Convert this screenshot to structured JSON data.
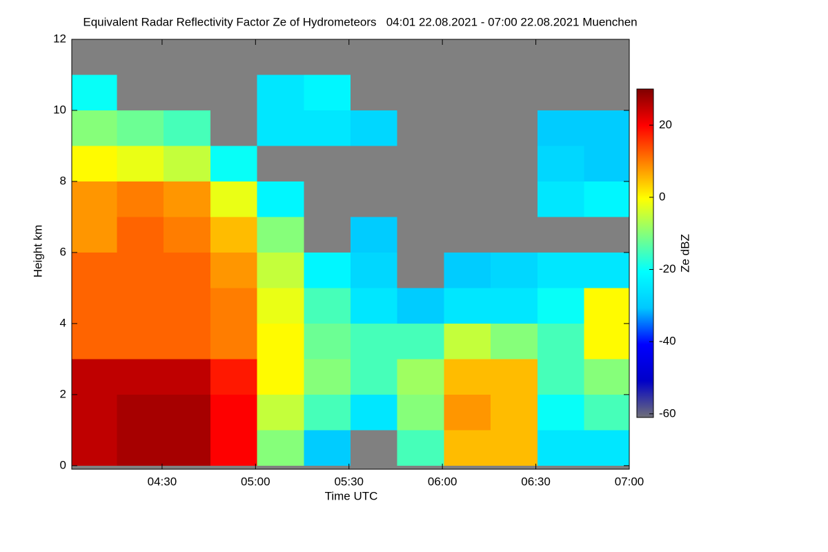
{
  "chart_data": {
    "type": "heatmap",
    "title": "Equivalent Radar Reflectivity Factor Ze of Hydrometeors   04:01 22.08.2021 - 07:00 22.08.2021 Muenchen",
    "xlabel": "Time UTC",
    "ylabel": "Height km",
    "colorbar_label": "Ze dBZ",
    "x": [
      248,
      263,
      278,
      293,
      308,
      323,
      338,
      353,
      368,
      383,
      398,
      413
    ],
    "y": [
      0.5,
      1.5,
      2.5,
      3.5,
      4.5,
      5.5,
      6.5,
      7.5,
      8.5,
      9.5,
      10.5,
      11.5
    ],
    "z": [
      [
        25,
        27,
        27,
        20,
        -10,
        -30,
        null,
        -15,
        5,
        5,
        -25,
        -25
      ],
      [
        25,
        27,
        27,
        20,
        -5,
        -15,
        -25,
        -10,
        8,
        5,
        -20,
        -15
      ],
      [
        25,
        25,
        25,
        18,
        0,
        -10,
        -15,
        -8,
        5,
        5,
        -15,
        -10
      ],
      [
        12,
        12,
        12,
        10,
        0,
        -12,
        -15,
        -15,
        -5,
        -10,
        -15,
        0
      ],
      [
        12,
        12,
        12,
        10,
        -2,
        -15,
        -25,
        -30,
        -25,
        -25,
        -20,
        0
      ],
      [
        12,
        12,
        12,
        8,
        -5,
        -22,
        -28,
        null,
        -30,
        -28,
        -25,
        -25
      ],
      [
        8,
        12,
        10,
        5,
        -10,
        null,
        -30,
        null,
        null,
        null,
        null,
        null
      ],
      [
        8,
        10,
        8,
        -2,
        -22,
        null,
        null,
        null,
        null,
        null,
        -25,
        -22
      ],
      [
        0,
        -2,
        -5,
        -20,
        null,
        null,
        null,
        null,
        null,
        null,
        -28,
        -30
      ],
      [
        -10,
        -12,
        -15,
        null,
        -25,
        -25,
        -28,
        null,
        null,
        null,
        -30,
        -30
      ],
      [
        -20,
        null,
        null,
        null,
        -25,
        -22,
        null,
        null,
        null,
        null,
        null,
        null
      ],
      [
        null,
        null,
        null,
        null,
        null,
        null,
        null,
        null,
        null,
        null,
        null,
        null
      ]
    ],
    "xlim": [
      241,
      420
    ],
    "ylim": [
      -0.1,
      12
    ],
    "zlim": [
      -61,
      30
    ],
    "xticks": [
      {
        "value": 270,
        "label": "04:30"
      },
      {
        "value": 300,
        "label": "05:00"
      },
      {
        "value": 330,
        "label": "05:30"
      },
      {
        "value": 360,
        "label": "06:00"
      },
      {
        "value": 390,
        "label": "06:30"
      },
      {
        "value": 420,
        "label": "07:00"
      }
    ],
    "yticks": [
      0,
      2,
      4,
      6,
      8,
      10,
      12
    ],
    "zticks": [
      20,
      0,
      -20,
      -40,
      -60
    ],
    "missing_color": "#808080",
    "colormap": [
      "#707078",
      "#0000c8",
      "#0000ff",
      "#00c8ff",
      "#00ffff",
      "#80ff80",
      "#ffff00",
      "#ff8000",
      "#ff0000",
      "#800000"
    ]
  }
}
